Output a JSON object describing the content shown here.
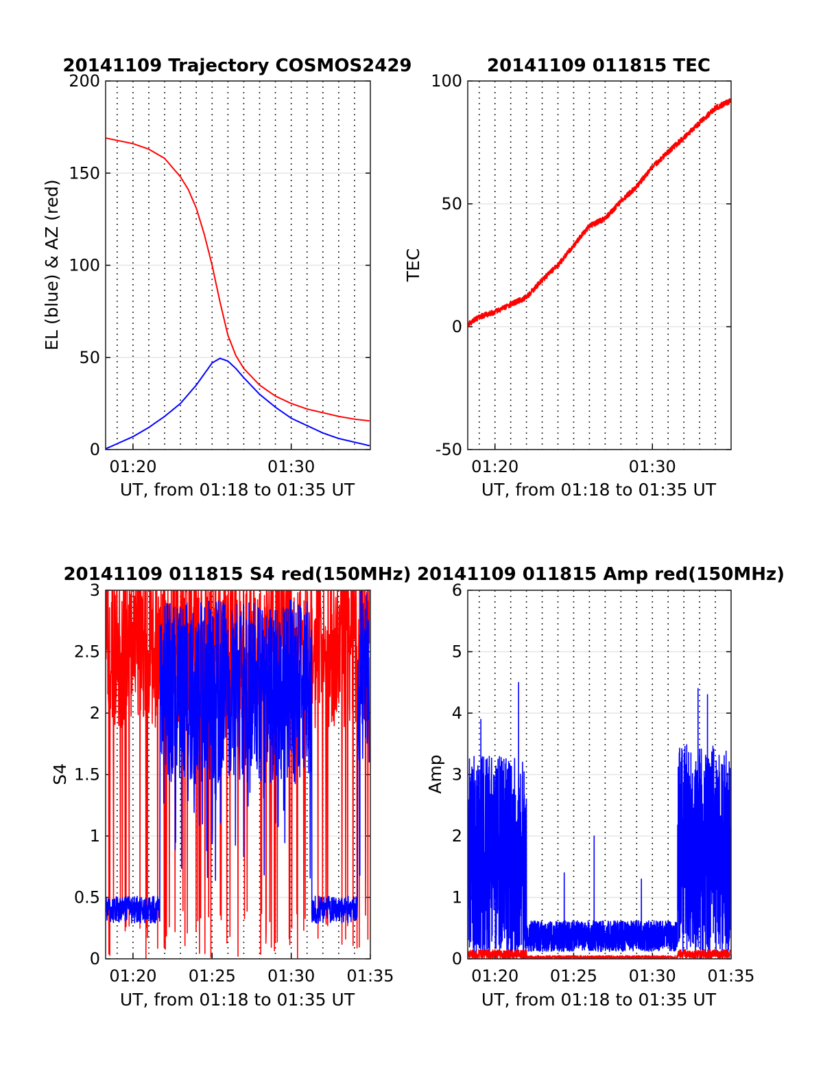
{
  "figure": {
    "background": "#ffffff"
  },
  "chart_data": [
    {
      "type": "line",
      "title": "20141109 Trajectory COSMOS2429",
      "xlabel": "UT, from 01:18 to 01:35 UT",
      "ylabel": "EL (blue) & AZ (red)",
      "xlim": [
        1.27,
        18.0
      ],
      "ylim": [
        0,
        200
      ],
      "xticks": [
        {
          "v": 3.0,
          "label": "01:20"
        },
        {
          "v": 13.0,
          "label": "01:30"
        }
      ],
      "yticks": [
        0,
        50,
        100,
        150,
        200
      ],
      "grid": {
        "x_dotted_every_min": 1,
        "y_solid": true
      },
      "series": [
        {
          "color": "#ff0000",
          "x": [
            1.3,
            3.0,
            4.0,
            5.0,
            6.0,
            6.5,
            7.0,
            7.5,
            8.0,
            8.5,
            9.0,
            9.5,
            10.0,
            11.0,
            12.0,
            13.0,
            14.0,
            15.0,
            16.0,
            17.0,
            18.0
          ],
          "y": [
            169,
            166,
            163,
            158,
            148,
            141,
            131,
            117,
            100,
            80,
            62,
            51,
            44,
            35,
            29,
            25,
            22,
            20,
            18,
            16.5,
            15.5
          ]
        },
        {
          "color": "#0000ff",
          "x": [
            1.3,
            3.0,
            4.0,
            5.0,
            6.0,
            6.5,
            7.0,
            7.5,
            8.0,
            8.5,
            9.0,
            9.5,
            10.0,
            11.0,
            12.0,
            13.0,
            14.0,
            15.0,
            16.0,
            17.0,
            18.0
          ],
          "y": [
            0.5,
            7,
            12,
            18,
            25,
            30,
            35,
            41,
            47,
            49.5,
            48,
            44,
            39,
            30,
            23,
            17,
            13,
            9,
            6,
            4,
            2
          ]
        }
      ]
    },
    {
      "type": "line",
      "title": "20141109 011815 TEC",
      "xlabel": "UT, from 01:18 to 01:35 UT",
      "ylabel": "TEC",
      "xlim": [
        1.27,
        18.0
      ],
      "ylim": [
        -50,
        100
      ],
      "xticks": [
        {
          "v": 3.0,
          "label": "01:20"
        },
        {
          "v": 13.0,
          "label": "01:30"
        }
      ],
      "yticks": [
        -50,
        0,
        50,
        100
      ],
      "grid": {
        "x_dotted_every_min": 1,
        "y_solid": true
      },
      "series": [
        {
          "color": "#ff0000",
          "x": [
            1.3,
            2.0,
            3.0,
            4.0,
            5.0,
            6.0,
            7.0,
            8.0,
            9.0,
            10.0,
            11.0,
            12.0,
            13.0,
            14.0,
            15.0,
            16.0,
            17.0,
            18.0
          ],
          "y": [
            1,
            4,
            6,
            9,
            12,
            19,
            25,
            33,
            41,
            44,
            51,
            57,
            65,
            71,
            77,
            83,
            89,
            92
          ]
        }
      ]
    },
    {
      "type": "line",
      "title": "20141109 011815 S4 red(150MHz)",
      "xlabel": "UT, from 01:18 to 01:35 UT",
      "ylabel": "S4",
      "xlim": [
        1.27,
        18.0
      ],
      "ylim": [
        0,
        3
      ],
      "xticks": [
        {
          "v": 3.0,
          "label": "01:20"
        },
        {
          "v": 8.0,
          "label": "01:25"
        },
        {
          "v": 13.0,
          "label": "01:30"
        },
        {
          "v": 18.0,
          "label": "01:35"
        }
      ],
      "yticks": [
        0,
        0.5,
        1,
        1.5,
        2,
        2.5,
        3
      ],
      "grid": {
        "x_dotted_every_min": 1,
        "y_solid": true
      },
      "series": [
        {
          "color": "#ff0000",
          "x_range": [
            1.3,
            17.95
          ],
          "level_mean": 2.3,
          "spread": 0.7,
          "dropouts_to_zero": true
        },
        {
          "color": "#0000ff",
          "x_range": [
            1.3,
            17.95
          ],
          "segments": [
            {
              "from": 1.3,
              "to": 4.7,
              "mean": 0.4
            },
            {
              "from": 4.7,
              "to": 14.3,
              "mean": 2.1
            },
            {
              "from": 14.3,
              "to": 17.2,
              "mean": 0.4
            },
            {
              "from": 17.2,
              "to": 17.95,
              "mean": 2.2
            }
          ]
        }
      ]
    },
    {
      "type": "line",
      "title": "20141109 011815 Amp red(150MHz)",
      "xlabel": "UT, from 01:18 to 01:35 UT",
      "ylabel": "Amp",
      "xlim": [
        1.27,
        18.0
      ],
      "ylim": [
        0,
        6
      ],
      "xticks": [
        {
          "v": 3.0,
          "label": "01:20"
        },
        {
          "v": 8.0,
          "label": "01:25"
        },
        {
          "v": 13.0,
          "label": "01:30"
        },
        {
          "v": 18.0,
          "label": "01:35"
        }
      ],
      "yticks": [
        0,
        1,
        2,
        3,
        4,
        5,
        6
      ],
      "grid": {
        "x_dotted_every_min": 1,
        "y_solid": true
      },
      "series": [
        {
          "color": "#0000ff",
          "x_range": [
            1.3,
            17.95
          ],
          "segments": [
            {
              "from": 1.3,
              "to": 5.0,
              "max": 3.3
            },
            {
              "from": 5.0,
              "to": 14.6,
              "max": 0.5
            },
            {
              "from": 14.6,
              "to": 17.95,
              "max": 3.5
            }
          ],
          "spikes": [
            {
              "x": 4.5,
              "y": 4.5
            },
            {
              "x": 2.1,
              "y": 3.9
            },
            {
              "x": 7.4,
              "y": 1.4
            },
            {
              "x": 9.3,
              "y": 2.0
            },
            {
              "x": 12.3,
              "y": 1.3
            },
            {
              "x": 16.5,
              "y": 4.3
            },
            {
              "x": 15.9,
              "y": 4.4
            }
          ]
        },
        {
          "color": "#ff0000",
          "x_range": [
            1.3,
            17.95
          ],
          "max": 0.15
        }
      ]
    }
  ]
}
